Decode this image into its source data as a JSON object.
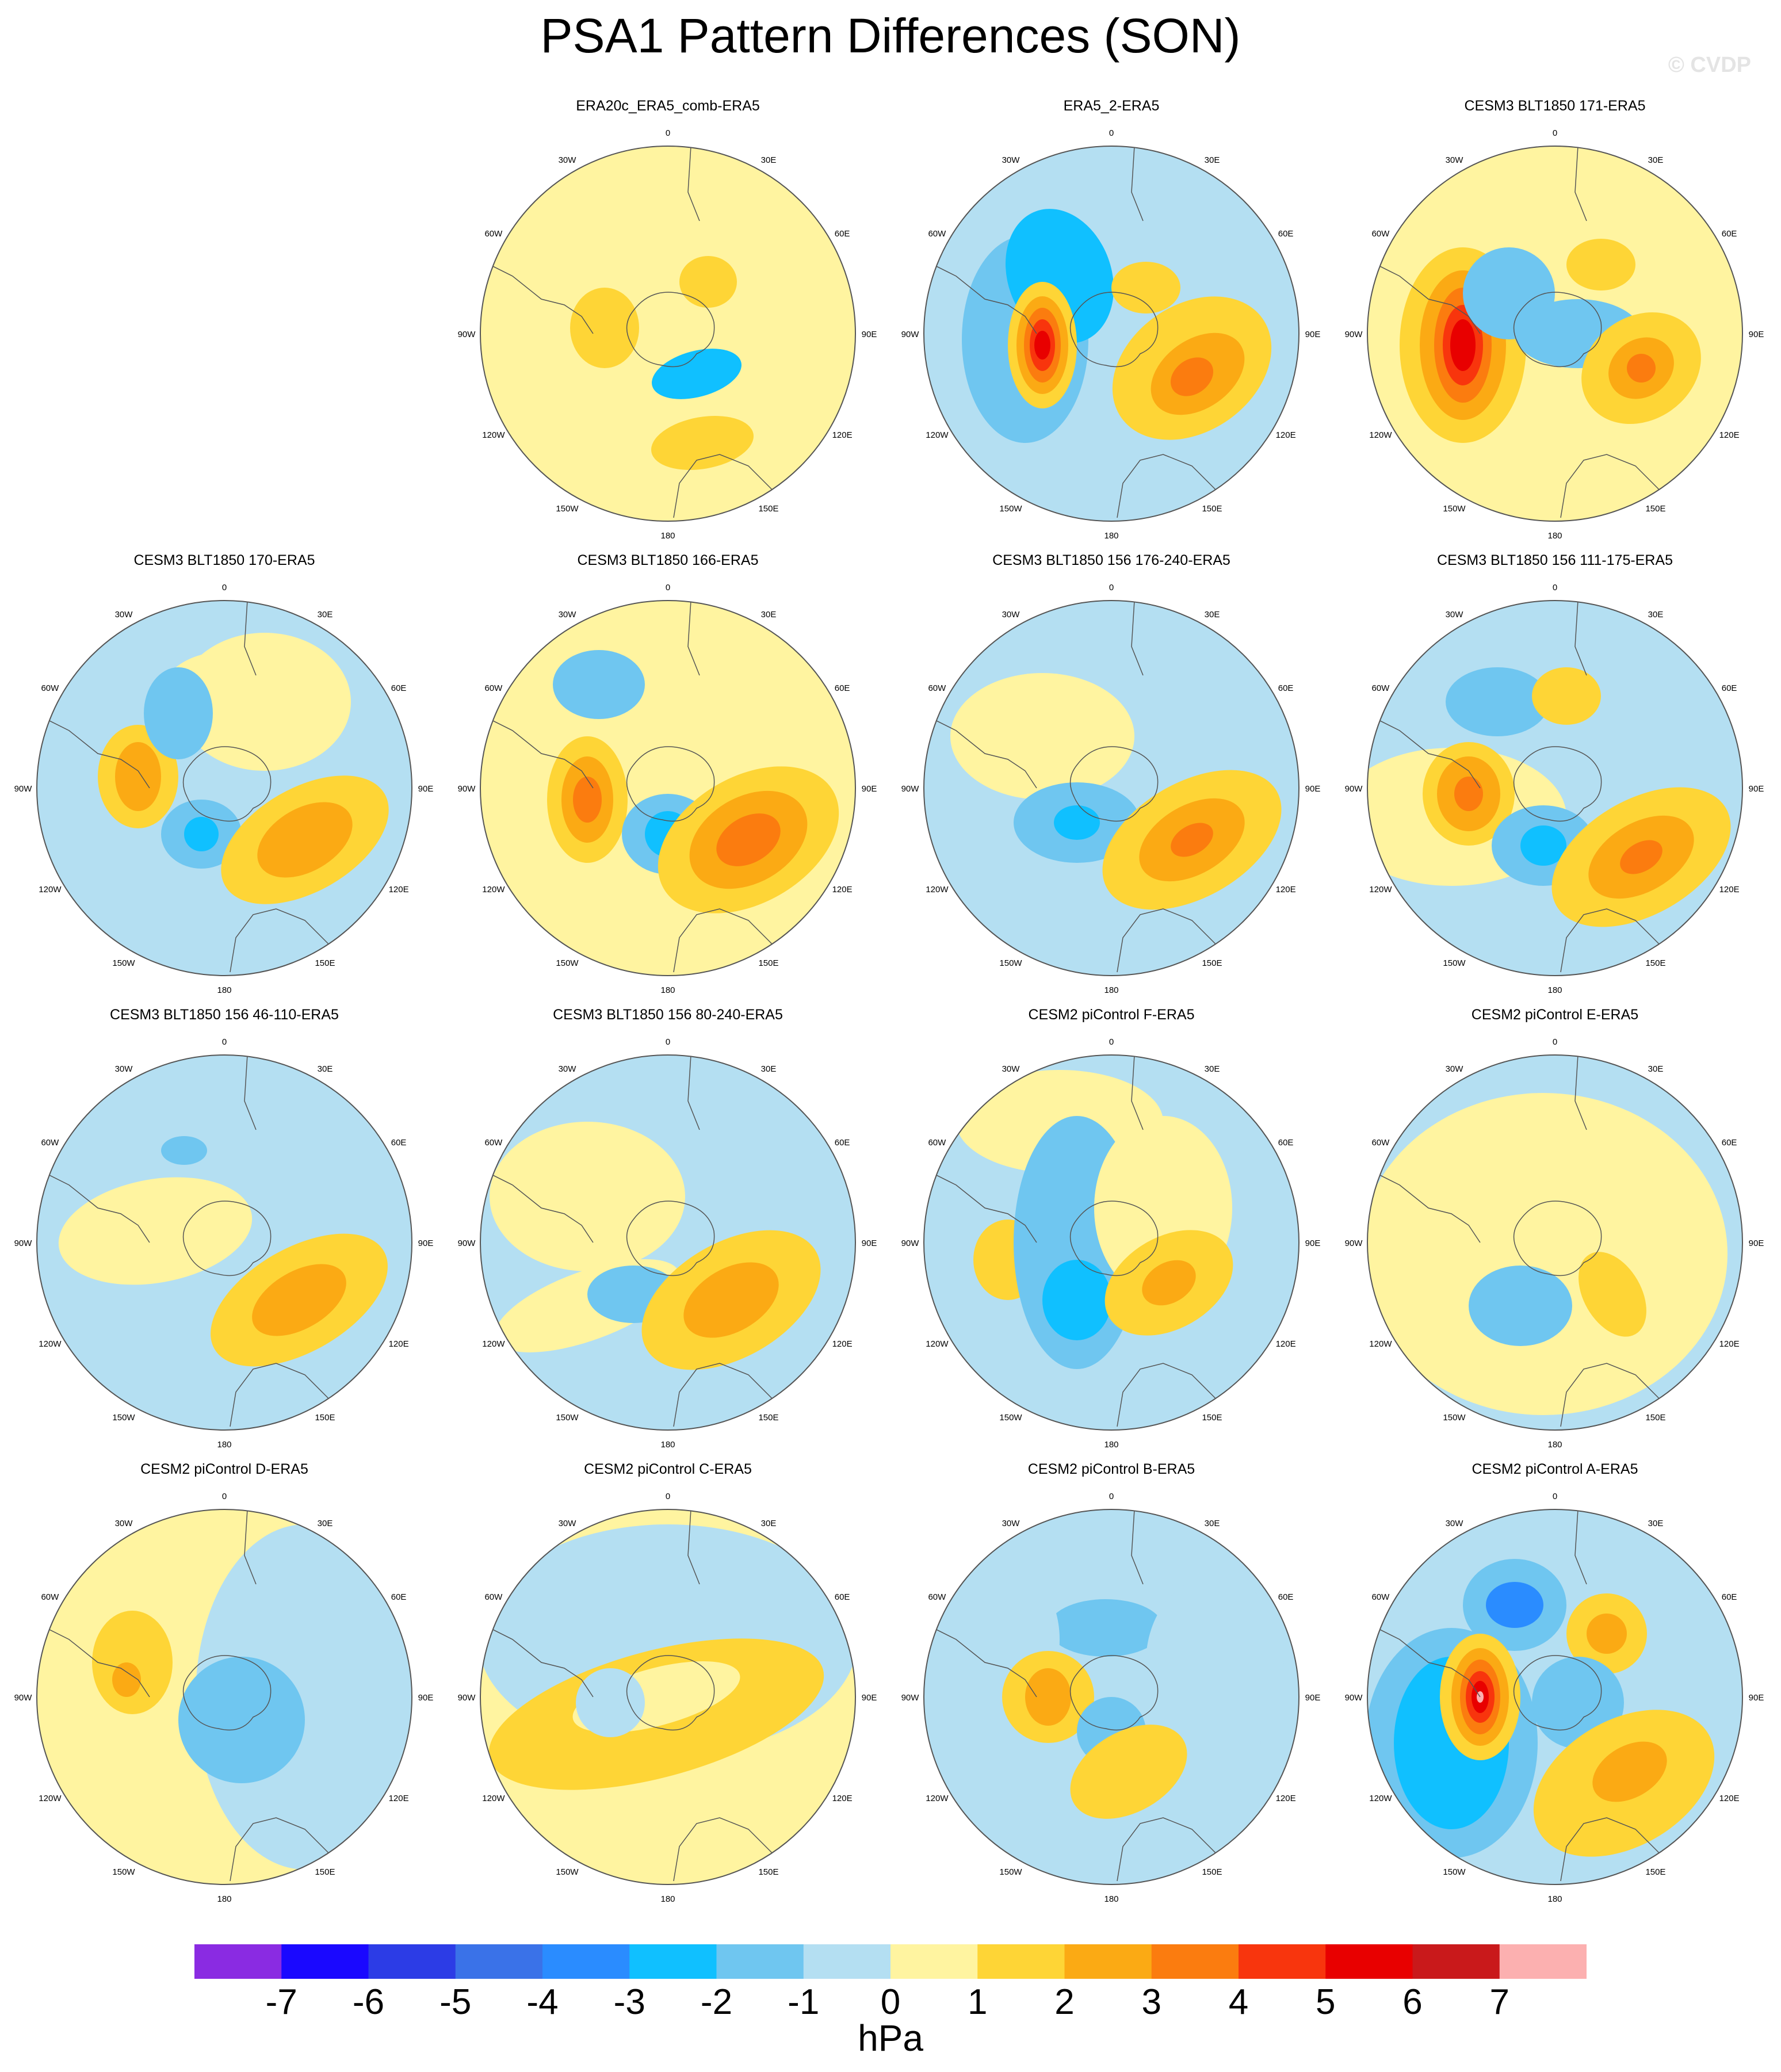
{
  "title": "PSA1 Pattern Differences (SON)",
  "watermark": "© CVDP",
  "units": "hPa",
  "colors": {
    "land_outline": "#555555",
    "frame": "#555555"
  },
  "longitude_labels": [
    "0",
    "30E",
    "60E",
    "90E",
    "120E",
    "150E",
    "180",
    "150W",
    "120W",
    "90W",
    "60W",
    "30W"
  ],
  "colorbar": {
    "colors": [
      "#8a2be2",
      "#1a08ff",
      "#2c3ce6",
      "#3a72e8",
      "#2a8cff",
      "#10c0ff",
      "#6fc6f0",
      "#b4dff2",
      "#fff4a0",
      "#fed536",
      "#fbaa14",
      "#fb7c0f",
      "#f8350d",
      "#e80000",
      "#c9191b",
      "#fcb0b0"
    ],
    "labels": [
      "-7",
      "-6",
      "-5",
      "-4",
      "-3",
      "-2",
      "-1",
      "0",
      "1",
      "2",
      "3",
      "4",
      "5",
      "6",
      "7"
    ]
  },
  "panels": [
    {
      "title": "ERA20c_ERA5_comb-ERA5",
      "row": 0,
      "col": 1
    },
    {
      "title": "ERA5_2-ERA5",
      "row": 0,
      "col": 2
    },
    {
      "title": "CESM3 BLT1850 171-ERA5",
      "row": 0,
      "col": 3
    },
    {
      "title": "CESM3 BLT1850 170-ERA5",
      "row": 1,
      "col": 0
    },
    {
      "title": "CESM3 BLT1850 166-ERA5",
      "row": 1,
      "col": 1
    },
    {
      "title": "CESM3 BLT1850 156 176-240-ERA5",
      "row": 1,
      "col": 2
    },
    {
      "title": "CESM3 BLT1850 156 111-175-ERA5",
      "row": 1,
      "col": 3
    },
    {
      "title": "CESM3 BLT1850 156 46-110-ERA5",
      "row": 2,
      "col": 0
    },
    {
      "title": "CESM3 BLT1850 156 80-240-ERA5",
      "row": 2,
      "col": 1
    },
    {
      "title": "CESM2 piControl F-ERA5",
      "row": 2,
      "col": 2
    },
    {
      "title": "CESM2 piControl E-ERA5",
      "row": 2,
      "col": 3
    },
    {
      "title": "CESM2 piControl D-ERA5",
      "row": 3,
      "col": 0
    },
    {
      "title": "CESM2 piControl C-ERA5",
      "row": 3,
      "col": 1
    },
    {
      "title": "CESM2 piControl B-ERA5",
      "row": 3,
      "col": 2
    },
    {
      "title": "CESM2 piControl A-ERA5",
      "row": 3,
      "col": 3
    }
  ]
}
